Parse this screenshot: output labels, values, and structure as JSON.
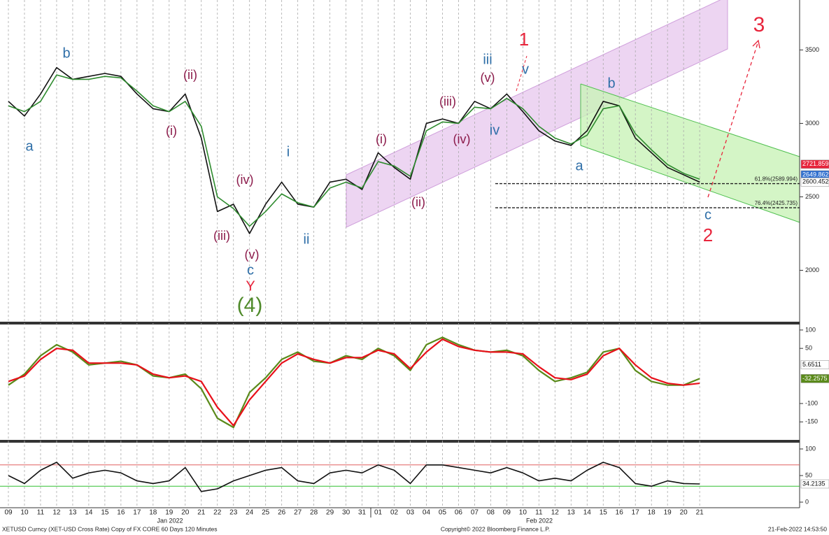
{
  "footer": {
    "left": "XETUSD Curncy (XET-USD Cross Rate) Copy of FX CORE 60 Days 120 Minutes",
    "center": "Copyright© 2022 Bloomberg Finance L.P.",
    "right": "21-Feb-2022 14:53:50"
  },
  "chart_data": {
    "type": "line",
    "categories": [
      "09",
      "10",
      "11",
      "12",
      "13",
      "14",
      "15",
      "16",
      "17",
      "18",
      "19",
      "20",
      "21",
      "22",
      "23",
      "24",
      "25",
      "26",
      "27",
      "28",
      "29",
      "30",
      "31",
      "01",
      "02",
      "03",
      "04",
      "05",
      "06",
      "07",
      "08",
      "09",
      "10",
      "11",
      "12",
      "13",
      "14",
      "15",
      "16",
      "17",
      "18",
      "19",
      "20",
      "21"
    ],
    "months": [
      "Jan 2022",
      "Feb 2022"
    ],
    "panels": [
      {
        "ylim": [
          1650,
          3840
        ],
        "yticks": [
          2000,
          2500,
          3000,
          3500
        ],
        "series": [
          {
            "color": "#111111",
            "values": [
              3150,
              3050,
              3200,
              3380,
              3300,
              3320,
              3340,
              3320,
              3200,
              3100,
              3080,
              3200,
              2900,
              2400,
              2450,
              2250,
              2450,
              2600,
              2450,
              2430,
              2600,
              2620,
              2550,
              2800,
              2700,
              2620,
              3000,
              3030,
              3000,
              3150,
              3100,
              3200,
              3080,
              2950,
              2880,
              2850,
              2950,
              3150,
              3120,
              2900,
              2800,
              2700,
              2650,
              2600.452
            ]
          },
          {
            "color": "#2e8b2e",
            "values": [
              3120,
              3080,
              3150,
              3330,
              3300,
              3300,
              3320,
              3310,
              3220,
              3120,
              3080,
              3150,
              2980,
              2500,
              2420,
              2300,
              2400,
              2520,
              2460,
              2430,
              2560,
              2600,
              2560,
              2740,
              2710,
              2640,
              2950,
              3010,
              3000,
              3110,
              3100,
              3170,
              3100,
              2980,
              2900,
              2860,
              2920,
              3100,
              3120,
              2930,
              2820,
              2720,
              2660,
              2620
            ]
          }
        ],
        "levels": [
          {
            "value": 2589.994,
            "label": "61.8%(2589.994)"
          },
          {
            "value": 2425.735,
            "label": "76.4%(2425.735)"
          }
        ],
        "tags": [
          {
            "value": 2721.859,
            "color": "#e8253c"
          },
          {
            "value": 2649.862,
            "color": "#2f6fcf"
          },
          {
            "value": 2600.452,
            "color": "#ffffff"
          }
        ],
        "annotations": [
          {
            "text": "a",
            "color": "#2f6fa8"
          },
          {
            "text": "b",
            "color": "#2f6fa8"
          },
          {
            "text": "(i)",
            "color": "#8b1a4a"
          },
          {
            "text": "(ii)",
            "color": "#8b1a4a"
          },
          {
            "text": "(iii)",
            "color": "#8b1a4a"
          },
          {
            "text": "(iv)",
            "color": "#8b1a4a"
          },
          {
            "text": "(v)",
            "color": "#8b1a4a"
          },
          {
            "text": "c",
            "color": "#2f6fa8"
          },
          {
            "text": "Y",
            "color": "#e8253c"
          },
          {
            "text": "(4)",
            "color": "#4f8a2a"
          },
          {
            "text": "i",
            "color": "#2f6fa8"
          },
          {
            "text": "ii",
            "color": "#2f6fa8"
          },
          {
            "text": "(i)",
            "color": "#8b1a4a"
          },
          {
            "text": "(ii)",
            "color": "#8b1a4a"
          },
          {
            "text": "(iii)",
            "color": "#8b1a4a"
          },
          {
            "text": "(iv)",
            "color": "#8b1a4a"
          },
          {
            "text": "(v)",
            "color": "#8b1a4a"
          },
          {
            "text": "iii",
            "color": "#2f6fa8"
          },
          {
            "text": "iv",
            "color": "#2f6fa8"
          },
          {
            "text": "v",
            "color": "#2f6fa8"
          },
          {
            "text": "1",
            "color": "#e8253c"
          },
          {
            "text": "a",
            "color": "#2f6fa8"
          },
          {
            "text": "b",
            "color": "#2f6fa8"
          },
          {
            "text": "c",
            "color": "#2f6fa8"
          },
          {
            "text": "2",
            "color": "#e8253c"
          },
          {
            "text": "3",
            "color": "#e8253c"
          }
        ]
      },
      {
        "ylim": [
          -199,
          115
        ],
        "yticks": [
          100,
          50,
          -100,
          -150
        ],
        "series": [
          {
            "color": "#5a8a1a",
            "values": [
              -50,
              -20,
              30,
              60,
              40,
              5,
              10,
              15,
              5,
              -25,
              -30,
              -20,
              -60,
              -140,
              -165,
              -70,
              -30,
              20,
              40,
              15,
              10,
              30,
              20,
              50,
              30,
              -10,
              60,
              80,
              60,
              45,
              40,
              45,
              30,
              -10,
              -40,
              -30,
              -15,
              40,
              50,
              -10,
              -40,
              -50,
              -50,
              -32.2575
            ]
          },
          {
            "color": "#e8101a",
            "values": [
              -40,
              -25,
              20,
              50,
              45,
              10,
              10,
              10,
              5,
              -20,
              -30,
              -25,
              -40,
              -110,
              -160,
              -90,
              -40,
              10,
              35,
              20,
              10,
              25,
              25,
              45,
              35,
              -5,
              40,
              75,
              55,
              45,
              40,
              40,
              35,
              0,
              -30,
              -35,
              -20,
              30,
              50,
              5,
              -30,
              -45,
              -50,
              -45
            ]
          }
        ],
        "tags": [
          {
            "value": 5.6511,
            "color": "#ffffff"
          },
          {
            "value": -32.2575,
            "color": "#5a8a1a"
          }
        ]
      },
      {
        "ylim": [
          -10.5,
          111.8
        ],
        "yticks": [
          0,
          50,
          100
        ],
        "bands": [
          {
            "value": 70,
            "color": "#e06060"
          },
          {
            "value": 30,
            "color": "#30c030"
          }
        ],
        "series": [
          {
            "color": "#111111",
            "values": [
              50,
              35,
              60,
              75,
              45,
              55,
              60,
              55,
              40,
              35,
              40,
              65,
              20,
              25,
              40,
              50,
              60,
              65,
              40,
              35,
              55,
              60,
              55,
              70,
              60,
              35,
              70,
              70,
              65,
              60,
              55,
              65,
              55,
              40,
              45,
              40,
              60,
              75,
              65,
              35,
              30,
              40,
              35,
              34.2135
            ]
          }
        ],
        "tags": [
          {
            "value": 34.2135,
            "color": "#ffffff"
          }
        ]
      }
    ]
  }
}
